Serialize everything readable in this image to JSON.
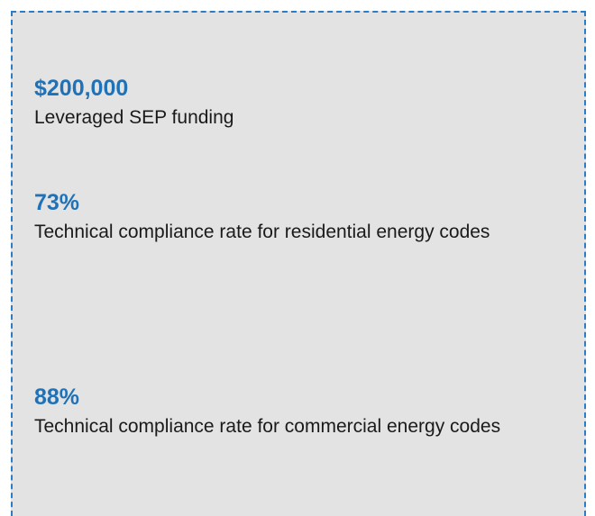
{
  "stats": [
    {
      "value": "$200,000",
      "label": "Leveraged SEP funding"
    },
    {
      "value": "73%",
      "label": "Technical compliance rate for residential energy codes"
    },
    {
      "value": "88%",
      "label": "Technical compliance rate for commercial energy codes"
    }
  ]
}
